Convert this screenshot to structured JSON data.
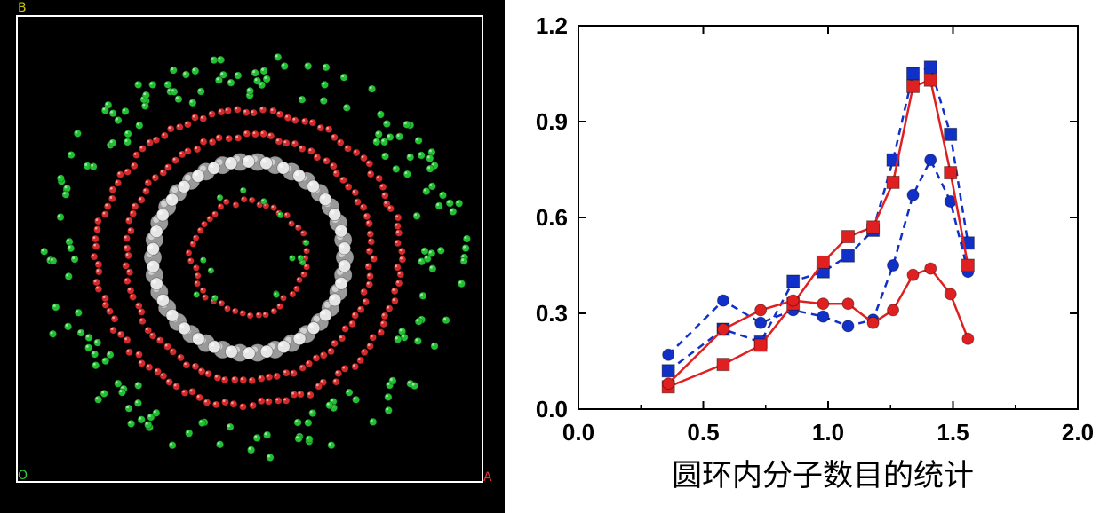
{
  "molecule_panel": {
    "corner_labels": {
      "top_left": "B",
      "bottom_left": "O",
      "bottom_right": "A"
    },
    "colors": {
      "background": "#000000",
      "frame": "#ffffff",
      "green_atom": "#22c032",
      "red_atom": "#d42a2a",
      "grey_atom": "#9a9a9a",
      "label_B": "#c8c800",
      "label_O": "#2ecc40",
      "label_A": "#e03030"
    }
  },
  "chart_data": {
    "type": "line",
    "xlim": [
      0.0,
      2.0
    ],
    "ylim": [
      0.0,
      1.2
    ],
    "x_ticks": [
      "0.0",
      "0.5",
      "1.0",
      "1.5",
      "2.0"
    ],
    "y_ticks": [
      "0.0",
      "0.3",
      "0.6",
      "0.9",
      "1.2"
    ],
    "grid": false,
    "xlabel": "",
    "ylabel": "",
    "series": [
      {
        "marker": "square",
        "color": "#1030c8",
        "dashed": true,
        "points": [
          [
            0.36,
            0.12
          ],
          [
            0.58,
            0.25
          ],
          [
            0.73,
            0.21
          ],
          [
            0.86,
            0.4
          ],
          [
            0.98,
            0.43
          ],
          [
            1.08,
            0.48
          ],
          [
            1.18,
            0.56
          ],
          [
            1.26,
            0.78
          ],
          [
            1.34,
            1.05
          ],
          [
            1.41,
            1.07
          ],
          [
            1.49,
            0.86
          ],
          [
            1.56,
            0.52
          ]
        ]
      },
      {
        "marker": "circle",
        "color": "#1030c8",
        "dashed": true,
        "points": [
          [
            0.36,
            0.17
          ],
          [
            0.58,
            0.34
          ],
          [
            0.73,
            0.27
          ],
          [
            0.86,
            0.31
          ],
          [
            0.98,
            0.29
          ],
          [
            1.08,
            0.26
          ],
          [
            1.18,
            0.28
          ],
          [
            1.26,
            0.45
          ],
          [
            1.34,
            0.67
          ],
          [
            1.41,
            0.78
          ],
          [
            1.49,
            0.65
          ],
          [
            1.56,
            0.43
          ]
        ]
      },
      {
        "marker": "square",
        "color": "#e02020",
        "dashed": false,
        "points": [
          [
            0.36,
            0.07
          ],
          [
            0.58,
            0.14
          ],
          [
            0.73,
            0.2
          ],
          [
            0.86,
            0.33
          ],
          [
            0.98,
            0.46
          ],
          [
            1.08,
            0.54
          ],
          [
            1.18,
            0.57
          ],
          [
            1.26,
            0.71
          ],
          [
            1.34,
            1.01
          ],
          [
            1.41,
            1.03
          ],
          [
            1.49,
            0.74
          ],
          [
            1.56,
            0.45
          ]
        ]
      },
      {
        "marker": "circle",
        "color": "#e02020",
        "dashed": false,
        "points": [
          [
            0.36,
            0.08
          ],
          [
            0.58,
            0.25
          ],
          [
            0.73,
            0.31
          ],
          [
            0.86,
            0.34
          ],
          [
            0.98,
            0.33
          ],
          [
            1.08,
            0.33
          ],
          [
            1.18,
            0.27
          ],
          [
            1.26,
            0.31
          ],
          [
            1.34,
            0.42
          ],
          [
            1.41,
            0.44
          ],
          [
            1.49,
            0.36
          ],
          [
            1.56,
            0.22
          ]
        ]
      }
    ]
  },
  "caption": "圆环内分子数目的统计"
}
